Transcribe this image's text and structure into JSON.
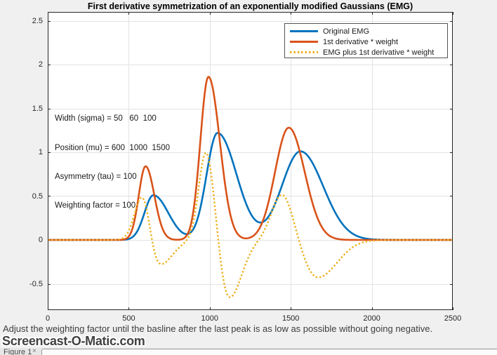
{
  "figure": {
    "caption": "Adjust the weighting factor until the basline after the last peak is as low as possible without going negative.",
    "annotation_lines": [
      "Width (sigma) = 50   60  100",
      "Position (mu) = 600  1000  1500",
      "Asymmetry (tau) = 100",
      "Weighting factor = 100"
    ],
    "watermark": "Screencast-O-Matic.com",
    "taskbar": {
      "tab_label": "Figure 1",
      "close_glyph": "×"
    }
  },
  "chart_data": {
    "type": "line",
    "title": "First derivative symmetrization of an exponentially modified Gaussians (EMG)",
    "xlabel": "",
    "ylabel": "",
    "xlim": [
      0,
      2500
    ],
    "ylim": [
      -0.8,
      2.6
    ],
    "xticks": [
      "0",
      "500",
      "1000",
      "1500",
      "2000",
      "2500"
    ],
    "yticks": [
      "-0.5",
      "0",
      "0.5",
      "1",
      "1.5",
      "2",
      "2.5"
    ],
    "grid": true,
    "legend_position": "top-right",
    "axis_color": "#262626",
    "grid_color": "#e3e3e3",
    "plot_bg": "#ffffff",
    "series": [
      {
        "name": "Original EMG",
        "color": "#0072BD",
        "line_style": "solid",
        "line_width": 2.6,
        "peaks": [
          [
            652,
            0.51,
            55,
            92
          ],
          [
            1048,
            1.22,
            68,
            118
          ],
          [
            1560,
            1.01,
            115,
            140
          ]
        ],
        "key_points": [
          [
            480,
            0
          ],
          [
            652,
            0.51
          ],
          [
            810,
            0.12
          ],
          [
            1048,
            1.22
          ],
          [
            1280,
            0.22
          ],
          [
            1560,
            1.01
          ],
          [
            2100,
            0
          ]
        ]
      },
      {
        "name": "1st derivative * weight",
        "color": "#D95319",
        "line_style": "solid",
        "line_width": 2.6,
        "peaks": [
          [
            604,
            0.84,
            42,
            54
          ],
          [
            992,
            1.86,
            50,
            70
          ],
          [
            1488,
            1.28,
            85,
            98
          ]
        ],
        "key_points": [
          [
            500,
            0
          ],
          [
            604,
            0.84
          ],
          [
            775,
            0.01
          ],
          [
            992,
            1.86
          ],
          [
            1245,
            0.03
          ],
          [
            1488,
            1.28
          ],
          [
            1850,
            0
          ]
        ]
      },
      {
        "name": "EMG plus 1st derivative * weight",
        "color": "#EDB120",
        "line_style": "dotted",
        "line_width": 2.4,
        "peaks": [
          [
            585,
            0.51,
            48,
            42
          ],
          [
            688,
            -0.29,
            48,
            80
          ],
          [
            978,
            1.02,
            45,
            50
          ],
          [
            1118,
            -0.67,
            55,
            78
          ],
          [
            1448,
            0.53,
            65,
            68
          ],
          [
            1665,
            -0.43,
            85,
            120
          ]
        ],
        "key_points": [
          [
            500,
            0
          ],
          [
            585,
            0.51
          ],
          [
            640,
            0
          ],
          [
            688,
            -0.28
          ],
          [
            860,
            0
          ],
          [
            978,
            1.01
          ],
          [
            1052,
            0
          ],
          [
            1118,
            -0.66
          ],
          [
            1310,
            0
          ],
          [
            1448,
            0.53
          ],
          [
            1550,
            0
          ],
          [
            1665,
            -0.43
          ],
          [
            2100,
            0
          ]
        ]
      }
    ]
  }
}
